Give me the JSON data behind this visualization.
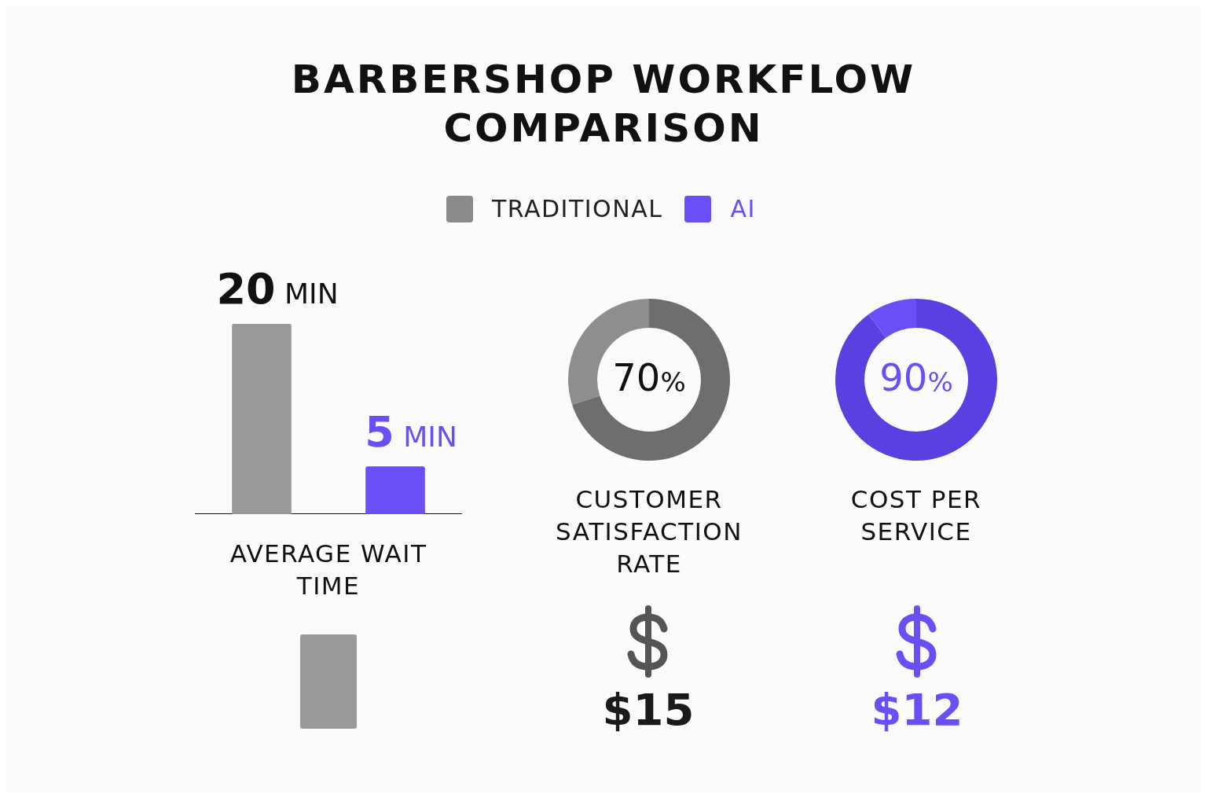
{
  "chart_data": [
    {
      "type": "bar",
      "title": "BARBERSHOP WORKFLOW COMPARISON",
      "categories": [
        null,
        null
      ],
      "xlabel": "AVERAGE WAIT TIME",
      "values": [
        20,
        5
      ],
      "colors": [
        "#999999",
        "#6b4ef5"
      ],
      "value_labels": [
        "20 MIN",
        "5 MIN"
      ]
    },
    {
      "type": "donut",
      "categories": [
        null,
        null
      ],
      "values": [
        70,
        30
      ],
      "colors": [
        "#6e6e6e",
        "#8e8e8e"
      ],
      "value_labels": [
        "70%",
        null
      ],
      "xlabel": "CUSTOMER SATISFACTION RATE"
    },
    {
      "type": "donut",
      "categories": [
        null,
        null
      ],
      "values": [
        90,
        10
      ],
      "colors": [
        "#5b3fe0",
        "#6b4ef5"
      ],
      "value_labels": [
        "90%",
        null
      ],
      "xlabel": "COST PER SERVICE"
    },
    {
      "type": "other",
      "categories": [
        "TRADITIONAL",
        "AI"
      ],
      "values": [
        15,
        12
      ],
      "value_labels": [
        "$15",
        "$12"
      ],
      "colors": [
        "#8a8a8a",
        "#6b4ef5"
      ]
    }
  ]
}
